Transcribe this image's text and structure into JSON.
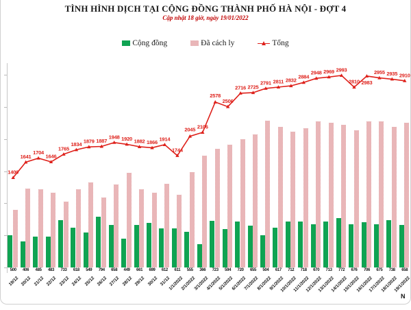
{
  "header": {
    "title": "TÌNH HÌNH DỊCH TẠI CỘNG ĐỒNG THÀNH PHỐ HÀ NỘI - ĐỢT 4",
    "subtitle": "Cập nhật 18 giờ, ngày 19/01/2022"
  },
  "legend": [
    {
      "label": "Cộng đồng",
      "color": "#0fa352",
      "marker": "square"
    },
    {
      "label": "Đã cách ly",
      "color": "#e2a3a6",
      "marker": "patterned-square"
    },
    {
      "label": "Tổng",
      "color": "#de201a",
      "marker": "line-triangle"
    }
  ],
  "colors": {
    "community_green": "#0fa352",
    "isolated_pink": "#e2a3a6",
    "total_red": "#de201a",
    "subtitle_red": "#c00000"
  },
  "chart_data": {
    "type": "bar",
    "combo": "clustered bars + line",
    "title": "TÌNH HÌNH DỊCH TẠI CỘNG ĐỒNG THÀNH PHỐ HÀ NỘI - ĐỢT 4",
    "subtitle": "Cập nhật 18 giờ, ngày 19/01/2022",
    "xlabel": "N",
    "ylabel": "",
    "ylim": [
      0,
      3100
    ],
    "grid": false,
    "legend_position": "top",
    "categories": [
      "19/12",
      "20/12",
      "21/12",
      "22/12",
      "23/12",
      "24/12",
      "25/12",
      "26/12",
      "27/12",
      "28/12",
      "29/12",
      "30/12",
      "31/12",
      "1/1/2022",
      "2/1/2022",
      "3/1/2022",
      "4/1/2022",
      "5/1/2022",
      "6/1/2022",
      "7/1/2022",
      "8/1/2022",
      "9/1/2022",
      "10/1/2022",
      "11/1/2022",
      "12/1/2022",
      "13/1/2022",
      "14/1/2022",
      "15/1/2022",
      "16/1/2022",
      "17/1/2022",
      "18/1/2022",
      "19/1/2022"
    ],
    "series": [
      {
        "name": "Cộng đồng",
        "type": "bar",
        "color": "#0fa352",
        "values": [
          500,
          406,
          485,
          483,
          733,
          618,
          549,
          794,
          658,
          449,
          661,
          699,
          612,
          611,
          555,
          366,
          723,
          594,
          720,
          655,
          504,
          617,
          712,
          718,
          670,
          713,
          772,
          676,
          706,
          675,
          738,
          658
        ]
      },
      {
        "name": "Đã cách ly",
        "type": "bar",
        "color": "#e2a3a6",
        "values": [
          900,
          1235,
          1219,
          1163,
          1032,
          1216,
          1330,
          1093,
          1290,
          1471,
          1221,
          1167,
          1302,
          1133,
          1490,
          1740,
          1855,
          1912,
          1996,
          2070,
          2287,
          2194,
          2120,
          2166,
          2278,
          2256,
          2221,
          2134,
          2277,
          2280,
          2197,
          2252
        ]
      },
      {
        "name": "Tổng",
        "type": "line",
        "color": "#de201a",
        "values": [
          1400,
          1641,
          1704,
          1646,
          1765,
          1834,
          1879,
          1887,
          1948,
          1920,
          1882,
          1866,
          1914,
          1744,
          2045,
          2106,
          2578,
          2506,
          2716,
          2725,
          2791,
          2811,
          2832,
          2884,
          2948,
          2969,
          2993,
          2810,
          2983,
          2955,
          2935,
          2910
        ]
      }
    ]
  }
}
